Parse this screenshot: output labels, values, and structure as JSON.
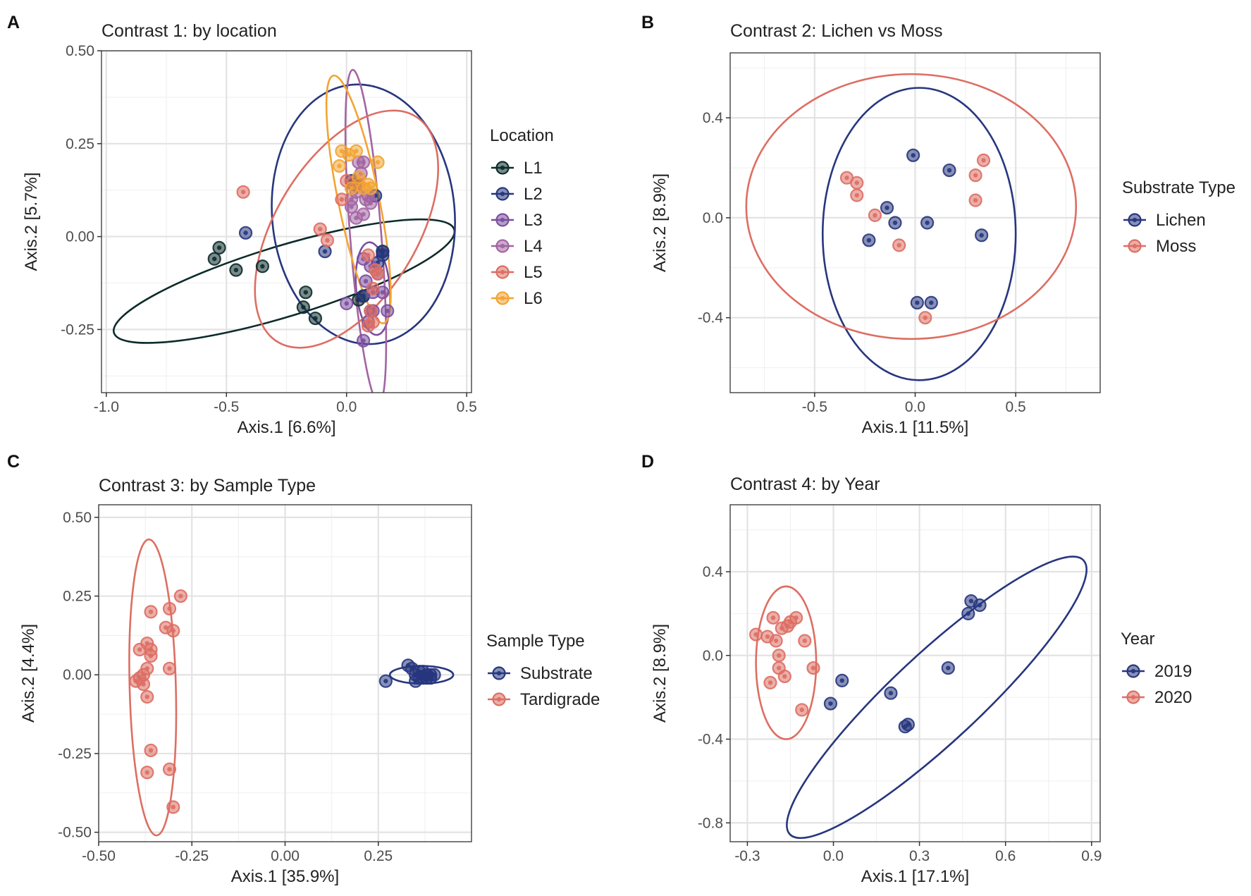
{
  "chart_data": [
    {
      "panel": "A",
      "type": "scatter",
      "title": "Contrast 1: by location",
      "xlabel": "Axis.1 [6.6%]",
      "ylabel": "Axis.2 [5.7%]",
      "xlim": [
        -1.02,
        0.52
      ],
      "ylim": [
        -0.42,
        0.5
      ],
      "xticks": [
        -1.0,
        -0.5,
        0.0,
        0.5
      ],
      "xtick_labels": [
        "-1.0",
        "-0.5",
        "0.0",
        "0.5"
      ],
      "yticks": [
        -0.25,
        0.0,
        0.25,
        0.5
      ],
      "ytick_labels": [
        "-0.25",
        "0.00",
        "0.25",
        "0.50"
      ],
      "legend_title": "Location",
      "grid": true,
      "legend_position": "right",
      "series": [
        {
          "name": "L1",
          "color": "#0d2b2b",
          "points": [
            [
              -0.53,
              -0.03
            ],
            [
              -0.55,
              -0.06
            ],
            [
              -0.46,
              -0.09
            ],
            [
              -0.35,
              -0.08
            ],
            [
              -0.17,
              -0.15
            ],
            [
              -0.18,
              -0.19
            ],
            [
              -0.13,
              -0.22
            ],
            [
              0.05,
              -0.17
            ],
            [
              0.07,
              -0.16
            ],
            [
              0.15,
              -0.04
            ],
            [
              0.03,
              0.14
            ]
          ],
          "ellipse": {
            "cx": -0.26,
            "cy": -0.12,
            "rx": 0.74,
            "ry": 0.095,
            "angle": -16.9
          }
        },
        {
          "name": "L2",
          "color": "#27367e",
          "points": [
            [
              -0.42,
              0.01
            ],
            [
              -0.09,
              -0.04
            ],
            [
              0.02,
              0.15
            ],
            [
              0.04,
              0.14
            ],
            [
              0.12,
              0.11
            ],
            [
              0.13,
              -0.07
            ],
            [
              0.15,
              -0.05
            ],
            [
              0.15,
              -0.04
            ],
            [
              0.07,
              -0.16
            ]
          ],
          "ellipse": {
            "cx": 0.07,
            "cy": 0.06,
            "rx": 0.38,
            "ry": 0.35,
            "angle": -5
          }
        },
        {
          "name": "L3",
          "color": "#7b4ea0",
          "points": [
            [
              0.07,
              -0.06
            ],
            [
              0.1,
              -0.08
            ],
            [
              0.13,
              -0.1
            ],
            [
              0.08,
              -0.12
            ],
            [
              0.11,
              -0.15
            ],
            [
              0.15,
              -0.15
            ],
            [
              0.17,
              -0.2
            ],
            [
              0.11,
              -0.2
            ],
            [
              0.07,
              -0.28
            ],
            [
              0.09,
              -0.23
            ],
            [
              0.0,
              -0.18
            ],
            [
              0.1,
              -0.2
            ]
          ],
          "ellipse": {
            "cx": 0.11,
            "cy": -0.14,
            "rx": 0.07,
            "ry": 0.125,
            "angle": -5
          }
        },
        {
          "name": "L4",
          "color": "#a264a3",
          "points": [
            [
              0.05,
              0.2
            ],
            [
              0.07,
              0.2
            ],
            [
              0.04,
              0.12
            ],
            [
              0.08,
              0.1
            ],
            [
              0.1,
              0.09
            ],
            [
              0.02,
              0.08
            ],
            [
              0.07,
              0.06
            ],
            [
              0.04,
              0.05
            ],
            [
              0.09,
              0.11
            ],
            [
              0.02,
              0.1
            ],
            [
              0.06,
              0.17
            ]
          ],
          "ellipse": {
            "cx": 0.08,
            "cy": 0.0,
            "rx": 0.065,
            "ry": 0.45,
            "angle": -4.5
          }
        },
        {
          "name": "L5",
          "color": "#dd6e63",
          "points": [
            [
              -0.43,
              0.12
            ],
            [
              -0.11,
              0.02
            ],
            [
              -0.08,
              -0.01
            ],
            [
              0.0,
              0.15
            ],
            [
              -0.02,
              0.1
            ],
            [
              0.05,
              0.14
            ],
            [
              0.09,
              -0.05
            ],
            [
              0.12,
              -0.09
            ],
            [
              0.13,
              -0.1
            ],
            [
              0.11,
              -0.14
            ],
            [
              0.09,
              -0.24
            ],
            [
              0.11,
              -0.23
            ],
            [
              0.1,
              -0.2
            ]
          ],
          "ellipse": {
            "cx": 0.0,
            "cy": 0.02,
            "rx": 0.55,
            "ry": 0.19,
            "angle": -58.5
          }
        },
        {
          "name": "L6",
          "color": "#f3a432",
          "points": [
            [
              -0.02,
              0.23
            ],
            [
              0.01,
              0.22
            ],
            [
              0.04,
              0.23
            ],
            [
              -0.03,
              0.19
            ],
            [
              0.13,
              0.2
            ],
            [
              0.09,
              0.14
            ],
            [
              0.1,
              0.13
            ],
            [
              0.07,
              0.13
            ],
            [
              0.05,
              0.16
            ],
            [
              0.02,
              0.13
            ]
          ],
          "ellipse": {
            "cx": 0.05,
            "cy": 0.1,
            "rx": 0.085,
            "ry": 0.34,
            "angle": -11.5
          }
        }
      ]
    },
    {
      "panel": "B",
      "type": "scatter",
      "title": "Contrast 2: Lichen vs Moss",
      "xlabel": "Axis.1 [11.5%]",
      "ylabel": "Axis.2 [8.9%]",
      "xlim": [
        -0.92,
        0.92
      ],
      "ylim": [
        -0.7,
        0.66
      ],
      "xticks": [
        -0.5,
        0.0,
        0.5
      ],
      "xtick_labels": [
        "-0.5",
        "0.0",
        "0.5"
      ],
      "yticks": [
        -0.4,
        0.0,
        0.4
      ],
      "ytick_labels": [
        "-0.4",
        "0.0",
        "0.4"
      ],
      "legend_title": "Substrate Type",
      "grid": true,
      "legend_position": "right",
      "series": [
        {
          "name": "Lichen",
          "color": "#27367e",
          "points": [
            [
              -0.01,
              0.25
            ],
            [
              0.17,
              0.19
            ],
            [
              -0.14,
              0.04
            ],
            [
              -0.1,
              -0.02
            ],
            [
              0.06,
              -0.02
            ],
            [
              -0.23,
              -0.09
            ],
            [
              0.33,
              -0.07
            ],
            [
              0.01,
              -0.34
            ],
            [
              0.08,
              -0.34
            ]
          ],
          "ellipse": {
            "cx": 0.02,
            "cy": -0.065,
            "rx": 0.48,
            "ry": 0.585,
            "angle": 0
          }
        },
        {
          "name": "Moss",
          "color": "#dd6e63",
          "points": [
            [
              -0.34,
              0.16
            ],
            [
              -0.29,
              0.14
            ],
            [
              -0.29,
              0.09
            ],
            [
              -0.2,
              0.01
            ],
            [
              -0.08,
              -0.11
            ],
            [
              0.3,
              0.17
            ],
            [
              0.34,
              0.23
            ],
            [
              0.3,
              0.07
            ],
            [
              0.05,
              -0.4
            ]
          ],
          "ellipse": {
            "cx": -0.02,
            "cy": 0.045,
            "rx": 0.82,
            "ry": 0.53,
            "angle": 0
          }
        }
      ]
    },
    {
      "panel": "C",
      "type": "scatter",
      "title": "Contrast 3: by Sample Type",
      "xlabel": "Axis.1 [35.9%]",
      "ylabel": "Axis.2 [4.4%]",
      "xlim": [
        -0.5,
        0.5
      ],
      "ylim": [
        -0.53,
        0.54
      ],
      "xticks": [
        -0.5,
        -0.25,
        0.0,
        0.25
      ],
      "xtick_labels": [
        "-0.50",
        "-0.25",
        "0.00",
        "0.25"
      ],
      "yticks": [
        -0.5,
        -0.25,
        0.0,
        0.25,
        0.5
      ],
      "ytick_labels": [
        "-0.50",
        "-0.25",
        "0.00",
        "0.25",
        "0.50"
      ],
      "legend_title": "Sample Type",
      "grid": true,
      "legend_position": "right",
      "series": [
        {
          "name": "Substrate",
          "color": "#27367e",
          "points": [
            [
              0.27,
              -0.02
            ],
            [
              0.33,
              0.03
            ],
            [
              0.35,
              0.0
            ],
            [
              0.36,
              0.01
            ],
            [
              0.37,
              -0.01
            ],
            [
              0.38,
              0.0
            ],
            [
              0.39,
              0.0
            ],
            [
              0.4,
              0.0
            ],
            [
              0.34,
              0.02
            ],
            [
              0.36,
              -0.01
            ],
            [
              0.37,
              0.01
            ],
            [
              0.38,
              -0.01
            ],
            [
              0.35,
              -0.02
            ],
            [
              0.39,
              -0.01
            ]
          ],
          "ellipse": {
            "cx": 0.366,
            "cy": 0.0,
            "rx": 0.085,
            "ry": 0.028,
            "angle": 0
          }
        },
        {
          "name": "Tardigrade",
          "color": "#dd6e63",
          "points": [
            [
              -0.28,
              0.25
            ],
            [
              -0.31,
              0.21
            ],
            [
              -0.36,
              0.2
            ],
            [
              -0.32,
              0.15
            ],
            [
              -0.3,
              0.14
            ],
            [
              -0.37,
              0.1
            ],
            [
              -0.36,
              0.08
            ],
            [
              -0.39,
              0.08
            ],
            [
              -0.36,
              0.06
            ],
            [
              -0.31,
              0.02
            ],
            [
              -0.37,
              0.02
            ],
            [
              -0.38,
              0.0
            ],
            [
              -0.39,
              -0.01
            ],
            [
              -0.4,
              -0.02
            ],
            [
              -0.38,
              -0.03
            ],
            [
              -0.37,
              -0.07
            ],
            [
              -0.36,
              -0.24
            ],
            [
              -0.37,
              -0.31
            ],
            [
              -0.31,
              -0.3
            ],
            [
              -0.3,
              -0.42
            ]
          ],
          "ellipse": {
            "cx": -0.355,
            "cy": -0.04,
            "rx": 0.062,
            "ry": 0.47,
            "angle": -1.5
          }
        }
      ]
    },
    {
      "panel": "D",
      "type": "scatter",
      "title": "Contrast 4: by Year",
      "xlabel": "Axis.1 [17.1%]",
      "ylabel": "Axis.2 [8.9%]",
      "xlim": [
        -0.36,
        0.93
      ],
      "ylim": [
        -0.89,
        0.72
      ],
      "xticks": [
        -0.3,
        0.0,
        0.3,
        0.6,
        0.9
      ],
      "xtick_labels": [
        "-0.3",
        "0.0",
        "0.3",
        "0.6",
        "0.9"
      ],
      "yticks": [
        -0.8,
        -0.4,
        0.0,
        0.4
      ],
      "ytick_labels": [
        "-0.8",
        "-0.4",
        "0.0",
        "0.4"
      ],
      "legend_title": "Year",
      "grid": true,
      "legend_position": "right",
      "series": [
        {
          "name": "2019",
          "color": "#27367e",
          "points": [
            [
              0.48,
              0.26
            ],
            [
              0.51,
              0.24
            ],
            [
              0.47,
              0.2
            ],
            [
              0.4,
              -0.06
            ],
            [
              0.03,
              -0.12
            ],
            [
              0.2,
              -0.18
            ],
            [
              -0.01,
              -0.23
            ],
            [
              0.25,
              -0.34
            ],
            [
              0.26,
              -0.33
            ]
          ],
          "ellipse": {
            "cx": 0.36,
            "cy": -0.2,
            "rx": 0.7,
            "ry": 0.21,
            "angle": -43
          }
        },
        {
          "name": "2020",
          "color": "#dd6e63",
          "points": [
            [
              -0.27,
              0.1
            ],
            [
              -0.23,
              0.09
            ],
            [
              -0.21,
              0.18
            ],
            [
              -0.16,
              0.14
            ],
            [
              -0.13,
              0.18
            ],
            [
              -0.15,
              0.16
            ],
            [
              -0.18,
              0.13
            ],
            [
              -0.2,
              0.07
            ],
            [
              -0.1,
              0.07
            ],
            [
              -0.19,
              0.0
            ],
            [
              -0.19,
              -0.06
            ],
            [
              -0.17,
              -0.1
            ],
            [
              -0.22,
              -0.13
            ],
            [
              -0.07,
              -0.06
            ],
            [
              -0.11,
              -0.26
            ]
          ],
          "ellipse": {
            "cx": -0.165,
            "cy": -0.035,
            "rx": 0.105,
            "ry": 0.365,
            "angle": 0
          }
        }
      ]
    }
  ]
}
